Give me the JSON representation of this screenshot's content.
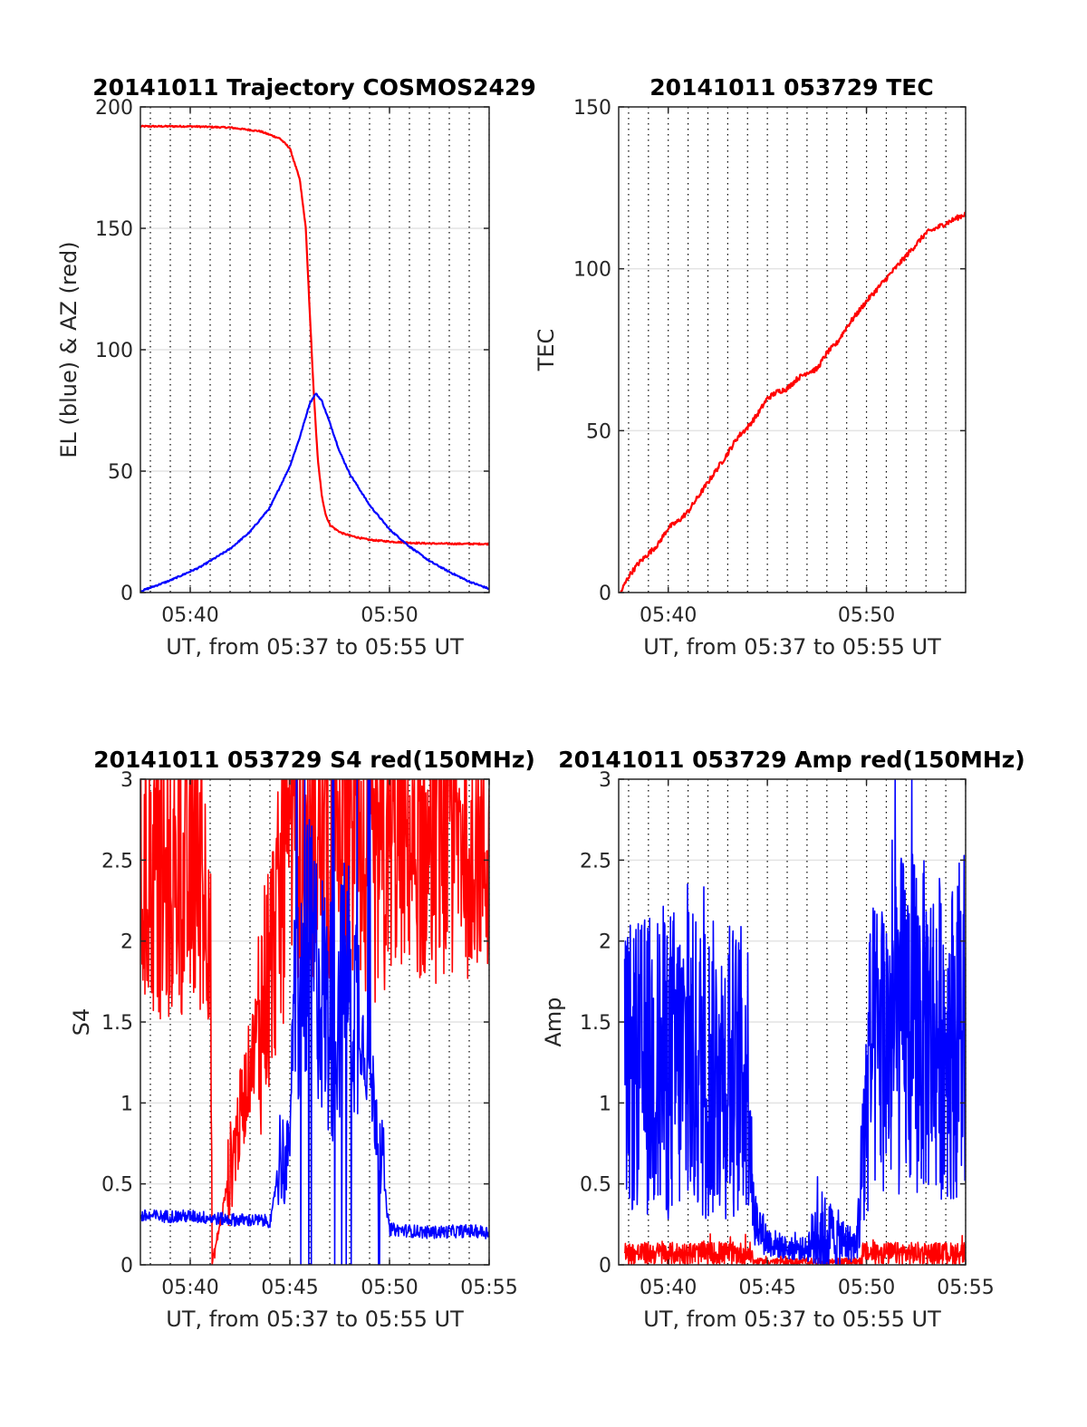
{
  "chart_data": [
    {
      "type": "line",
      "title": "20141011 Trajectory COSMOS2429",
      "xlabel": "UT, from 05:37 to 05:55 UT",
      "ylabel": "EL (blue) & AZ (red)",
      "xlim": [
        37.5,
        55
      ],
      "ylim": [
        0,
        200
      ],
      "xticks": [
        40,
        50
      ],
      "xtick_labels": [
        "05:40",
        "05:50"
      ],
      "yticks": [
        0,
        50,
        100,
        150,
        200
      ],
      "ytick_labels": [
        "0",
        "50",
        "100",
        "150",
        "200"
      ],
      "grid": true,
      "series": [
        {
          "color": "#ff0000",
          "pattern": "azimuth",
          "x": [
            37.5,
            40,
            42,
            43.5,
            44.5,
            45,
            45.5,
            45.8,
            46.0,
            46.2,
            46.4,
            46.6,
            46.8,
            47.0,
            47.3,
            47.6,
            48,
            48.5,
            49,
            50,
            51,
            52,
            53,
            55
          ],
          "values": [
            192,
            192,
            191.5,
            190,
            187,
            183,
            170,
            150,
            115,
            82,
            55,
            40,
            32,
            28,
            26,
            24.5,
            23.5,
            22.5,
            21.7,
            21,
            20.5,
            20.2,
            20.1,
            20
          ]
        },
        {
          "color": "#0000ff",
          "pattern": "elevation",
          "x": [
            37.5,
            39,
            40.5,
            42,
            43,
            44,
            45,
            45.5,
            46,
            46.3,
            46.6,
            47,
            47.5,
            48,
            49,
            50,
            51,
            52,
            53,
            54,
            55
          ],
          "values": [
            0.5,
            5,
            10.5,
            18,
            25,
            35,
            52,
            64,
            78,
            82,
            79,
            70,
            58,
            49,
            36,
            26,
            19,
            13,
            8.5,
            4.5,
            1.5
          ]
        }
      ]
    },
    {
      "type": "line",
      "title": "20141011 053729 TEC",
      "xlabel": "UT, from 05:37 to 05:55 UT",
      "ylabel": "TEC",
      "xlim": [
        37.5,
        55
      ],
      "ylim": [
        0,
        150
      ],
      "xticks": [
        40,
        50
      ],
      "xtick_labels": [
        "05:40",
        "05:50"
      ],
      "yticks": [
        0,
        50,
        100,
        150
      ],
      "ytick_labels": [
        "0",
        "50",
        "100",
        "150"
      ],
      "grid": true,
      "series": [
        {
          "color": "#ff0000",
          "pattern": "smooth",
          "x": [
            37.6,
            38,
            38.5,
            39,
            39.5,
            40,
            40.5,
            41,
            42,
            43,
            43.5,
            44,
            44.5,
            45,
            45.5,
            46,
            46.5,
            47,
            47.5,
            48,
            48.5,
            49,
            50,
            51,
            52,
            53,
            54,
            55
          ],
          "values": [
            0,
            5,
            9,
            12,
            15,
            20,
            22,
            25,
            34,
            43,
            48,
            51,
            55,
            60,
            62,
            63,
            66,
            68,
            69,
            74,
            77,
            82,
            90,
            97,
            104,
            111,
            114,
            117
          ]
        }
      ]
    },
    {
      "type": "line",
      "title": "20141011 053729 S4 red(150MHz)",
      "xlabel": "UT, from 05:37 to 05:55 UT",
      "ylabel": "S4",
      "xlim": [
        37.5,
        55
      ],
      "ylim": [
        0,
        3
      ],
      "xticks": [
        40,
        45,
        50,
        55
      ],
      "xtick_labels": [
        "05:40",
        "05:45",
        "05:50",
        "05:55"
      ],
      "yticks": [
        0,
        0.5,
        1,
        1.5,
        2,
        2.5,
        3
      ],
      "ytick_labels": [
        "0",
        "0.5",
        "1",
        "1.5",
        "2",
        "2.5",
        "3"
      ],
      "grid": true,
      "series": [
        {
          "color": "#ff0000",
          "pattern": "clipped",
          "x": [
            37.5,
            41,
            41.1,
            44.5,
            45.5,
            46,
            46.5,
            47,
            48,
            49,
            50,
            51,
            52,
            53,
            54,
            55
          ],
          "values": [
            2.3,
            2.3,
            0,
            2.2,
            2.6,
            2.5,
            2.6,
            2.5,
            2.7,
            2.3,
            2.6,
            2.6,
            2.5,
            2.6,
            2.7,
            2.5
          ]
        },
        {
          "color": "#0000ff",
          "pattern": "clipped",
          "x": [
            37.5,
            40,
            42,
            44,
            44.1,
            44.5,
            44.9,
            45.2,
            46,
            47,
            48,
            49,
            49.5,
            49.9,
            50,
            52,
            54,
            55
          ],
          "values": [
            0.3,
            0.3,
            0.28,
            0.27,
            0.3,
            0.7,
            0.6,
            1.5,
            2.0,
            1.5,
            1.8,
            1.2,
            0.8,
            0.3,
            0.22,
            0.2,
            0.21,
            0.2
          ]
        }
      ]
    },
    {
      "type": "line",
      "title": "20141011 053729 Amp red(150MHz)",
      "xlabel": "UT, from 05:37 to 05:55 UT",
      "ylabel": "Amp",
      "xlim": [
        37.5,
        55
      ],
      "ylim": [
        0,
        3
      ],
      "xticks": [
        40,
        45,
        50,
        55
      ],
      "xtick_labels": [
        "05:40",
        "05:45",
        "05:50",
        "05:55"
      ],
      "yticks": [
        0,
        0.5,
        1,
        1.5,
        2,
        2.5,
        3
      ],
      "ytick_labels": [
        "0",
        "0.5",
        "1",
        "1.5",
        "2",
        "2.5",
        "3"
      ],
      "grid": true,
      "series": [
        {
          "color": "#ff0000",
          "pattern": "band",
          "x": [
            37.8,
            44.2,
            44.3,
            49.7,
            49.8,
            55
          ],
          "values": [
            0.07,
            0.07,
            0.02,
            0.02,
            0.07,
            0.07
          ],
          "spread": [
            0.07,
            0.07,
            0.02,
            0.02,
            0.07,
            0.07
          ]
        },
        {
          "color": "#0000ff",
          "pattern": "band",
          "x": [
            37.8,
            38,
            40,
            42,
            44.1,
            44.3,
            45,
            46,
            47,
            47.5,
            48.5,
            49.5,
            49.8,
            50.2,
            52,
            54,
            55
          ],
          "values": [
            1.2,
            1.2,
            1.25,
            1.2,
            1.2,
            0.3,
            0.15,
            0.1,
            0.1,
            0.2,
            0.15,
            0.12,
            0.6,
            1.3,
            1.5,
            1.4,
            1.4
          ],
          "spread": [
            0.8,
            0.9,
            1.0,
            0.95,
            0.9,
            0.2,
            0.1,
            0.07,
            0.07,
            0.3,
            0.2,
            0.08,
            0.6,
            0.9,
            1.1,
            1.0,
            1.0
          ]
        }
      ]
    }
  ]
}
